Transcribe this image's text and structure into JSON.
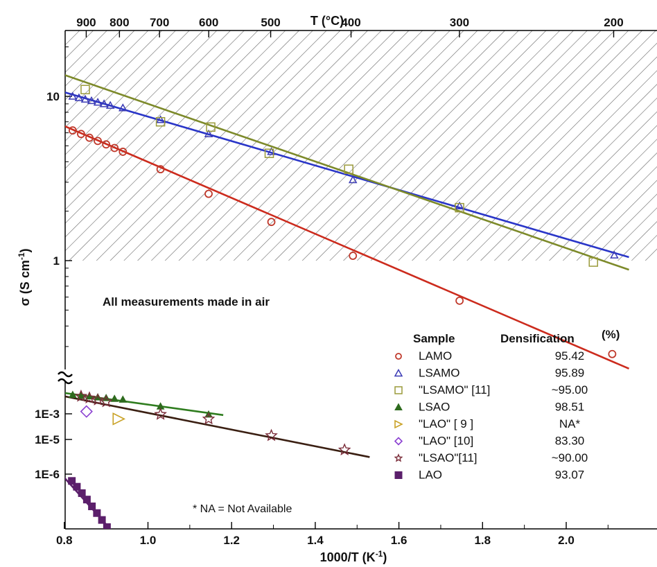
{
  "chart_data": {
    "type": "scatter",
    "xlabel": "1000/T (K",
    "xlabel_sup": "-1",
    "xlabel_close": ")",
    "ylabel": "σ (S cm",
    "ylabel_sup": "-1",
    "ylabel_close": ")",
    "top_axis_title": "T (°C)",
    "xlim": [
      0.8,
      2.15
    ],
    "x_ticks": [
      "0.8",
      "1.0",
      "1.2",
      "1.4",
      "1.6",
      "1.8",
      "2.0"
    ],
    "x_tick_values": [
      0.8,
      1.0,
      1.2,
      1.4,
      1.6,
      1.8,
      2.0
    ],
    "x_minor_ticks": [
      0.9,
      1.1,
      1.3,
      1.5,
      1.7,
      1.9,
      2.1
    ],
    "top_ticks": [
      "900",
      "800",
      "700",
      "600",
      "500",
      "400",
      "300",
      "200"
    ],
    "top_tick_celsius": [
      900,
      800,
      700,
      600,
      500,
      400,
      300,
      200
    ],
    "y_upper_scale": "log",
    "y_upper_ticks": [
      "10",
      "1"
    ],
    "y_upper_tick_values": [
      10,
      1
    ],
    "y_upper_range": [
      0.09,
      20
    ],
    "y_lower_ticks": [
      "1E-3",
      "1E-5",
      "1E-6"
    ],
    "y_lower_tick_values": [
      0.001,
      1e-05,
      1e-06
    ],
    "y_lower_scale_note": "compressed log scale below axis break",
    "axis_break": true,
    "shaded_region": "σ ≥ 1 S cm-1 (hatched)",
    "annotation": "All measurements made in air",
    "footnote": "* NA = Not Available",
    "legend": {
      "header_sample": "Sample",
      "header_density": "Densification",
      "header_density_unit": "(%)",
      "entries": [
        {
          "sample": "LAMO",
          "density": "95.42",
          "marker": "circle",
          "color": "#c0392b"
        },
        {
          "sample": "LSAMO",
          "density": "95.89",
          "marker": "triangle-open",
          "color": "#3b3bb5"
        },
        {
          "sample": "\"LSAMO\" [11]",
          "density": "~95.00",
          "marker": "square-open",
          "color": "#9a9a3a"
        },
        {
          "sample": "LSAO",
          "density": "98.51",
          "marker": "triangle-filled",
          "color": "#2e6b1e"
        },
        {
          "sample": "\"LAO\" [ 9 ]",
          "density": "NA*",
          "marker": "right-triangle-open",
          "color": "#c9a227"
        },
        {
          "sample": "\"LAO\" [10]",
          "density": "83.30",
          "marker": "diamond-open",
          "color": "#8a3fd1"
        },
        {
          "sample": "\"LSAO\"[11]",
          "density": "~90.00",
          "marker": "star-open",
          "color": "#7b2d3a"
        },
        {
          "sample": "LAO",
          "density": "93.07",
          "marker": "square-filled",
          "color": "#5b1f6b"
        }
      ]
    },
    "series": [
      {
        "name": "LAMO",
        "marker": "circle",
        "color": "#c0392b",
        "region": "upper",
        "x": [
          0.82,
          0.84,
          0.86,
          0.88,
          0.9,
          0.92,
          0.94,
          1.03,
          1.145,
          1.295,
          1.49,
          1.745,
          2.11
        ],
        "y": [
          6.2,
          5.9,
          5.6,
          5.35,
          5.1,
          4.85,
          4.6,
          3.6,
          2.55,
          1.72,
          1.07,
          0.57,
          0.27
        ],
        "fit": {
          "x": [
            0.8,
            2.15
          ],
          "y": [
            6.6,
            0.22
          ],
          "color": "#cc2b1d"
        }
      },
      {
        "name": "LSAMO",
        "marker": "triangle-open",
        "color": "#3b3bb5",
        "region": "upper",
        "x": [
          0.82,
          0.835,
          0.85,
          0.865,
          0.88,
          0.895,
          0.91,
          0.94,
          1.03,
          1.145,
          1.295,
          1.49,
          1.745,
          2.115
        ],
        "y": [
          10.0,
          9.8,
          9.6,
          9.4,
          9.2,
          9.0,
          8.8,
          8.5,
          7.2,
          5.9,
          4.6,
          3.1,
          2.15,
          1.08
        ],
        "fit": {
          "x": [
            0.8,
            2.15
          ],
          "y": [
            10.6,
            1.05
          ],
          "color": "#2a36c8"
        }
      },
      {
        "name": "\"LSAMO\" [11]",
        "marker": "square-open",
        "color": "#9a9a3a",
        "region": "upper",
        "x": [
          0.85,
          1.03,
          1.15,
          1.29,
          1.48,
          1.745,
          2.065
        ],
        "y": [
          11.0,
          7.0,
          6.5,
          4.5,
          3.6,
          2.1,
          0.98
        ],
        "fit": {
          "x": [
            0.8,
            2.15
          ],
          "y": [
            13.5,
            0.88
          ],
          "color": "#7d8a2a"
        }
      },
      {
        "name": "LSAO",
        "marker": "triangle-filled",
        "color": "#2e6b1e",
        "region": "lower",
        "x": [
          0.82,
          0.84,
          0.86,
          0.88,
          0.9,
          0.92,
          0.94,
          1.03,
          1.145
        ],
        "y": [
          0.0045,
          0.0042,
          0.004,
          0.0037,
          0.0035,
          0.0033,
          0.0031,
          0.0018,
          0.0009
        ],
        "fit": {
          "x": [
            0.8,
            1.18
          ],
          "y": [
            0.0052,
            0.0008
          ],
          "color": "#2f7d1f"
        }
      },
      {
        "name": "\"LAO\" [ 9 ]",
        "marker": "right-triangle-open",
        "color": "#c9a227",
        "region": "lower",
        "x": [
          0.93
        ],
        "y": [
          0.0004
        ]
      },
      {
        "name": "\"LAO\" [10]",
        "marker": "diamond-open",
        "color": "#8a3fd1",
        "region": "lower",
        "x": [
          0.853
        ],
        "y": [
          0.0012
        ]
      },
      {
        "name": "\"LSAO\"[11]",
        "marker": "star-open",
        "color": "#7b2d3a",
        "region": "lower",
        "x": [
          0.84,
          0.86,
          0.88,
          0.9,
          1.03,
          1.145,
          1.295,
          1.47
        ],
        "y": [
          0.004,
          0.0035,
          0.003,
          0.0026,
          0.0009,
          0.0004,
          2e-05,
          5e-06
        ],
        "fit": {
          "x": [
            0.8,
            1.53
          ],
          "y": [
            0.004,
            3.1e-06
          ],
          "color": "#3a1f12"
        }
      },
      {
        "name": "LAO",
        "marker": "square-filled",
        "color": "#5b1f6b",
        "region": "lower",
        "x": [
          0.818,
          0.83,
          0.842,
          0.854,
          0.866,
          0.878,
          0.89,
          0.902,
          0.914
        ],
        "y": [
          6.5e-07,
          4.5e-07,
          3e-07,
          2e-07,
          1.3e-07,
          8.5e-08,
          5.5e-08,
          3.5e-08,
          2.3e-08
        ],
        "fit": {
          "x": [
            0.8,
            0.925
          ],
          "y": [
            8e-07,
            2e-08
          ],
          "color": "#5b1f6b"
        }
      }
    ]
  }
}
